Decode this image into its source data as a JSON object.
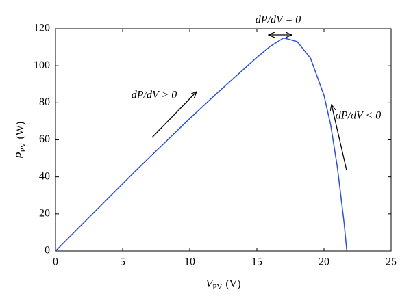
{
  "chart_data": {
    "type": "line",
    "xlabel": {
      "symbol": "V",
      "subscript": "PV",
      "unit": "(V)"
    },
    "ylabel": {
      "symbol": "P",
      "subscript": "PV",
      "unit": "(W)"
    },
    "annotations": [
      "dP/dV = 0",
      "dP/dV > 0",
      "dP/dV < 0"
    ],
    "x": [
      0,
      2,
      4,
      6,
      8,
      10,
      12,
      14,
      15,
      16,
      17,
      18,
      19,
      20,
      20.5,
      21,
      21.5,
      21.7
    ],
    "values": [
      0,
      14.5,
      29,
      43.5,
      57.5,
      71.5,
      85,
      98,
      104.5,
      110.5,
      115,
      113,
      104,
      84,
      68,
      45,
      15,
      0
    ],
    "color": "#2b4fd8",
    "xlim": [
      0,
      25
    ],
    "xticks": [
      0,
      5,
      10,
      15,
      20,
      25
    ],
    "ylim": [
      0,
      120
    ],
    "yticks": [
      0,
      20,
      40,
      60,
      80,
      100,
      120
    ],
    "grid": false
  }
}
